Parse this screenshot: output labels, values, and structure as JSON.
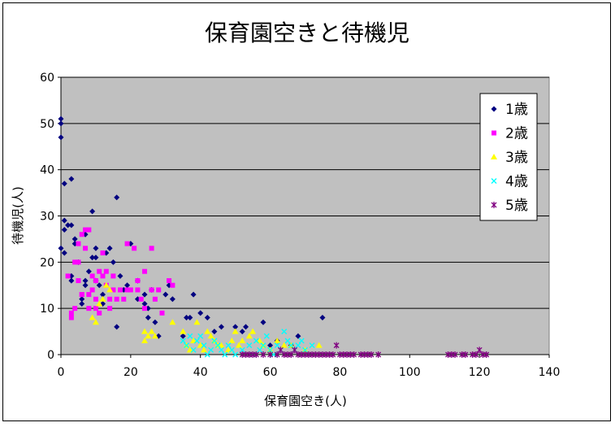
{
  "chart_data": {
    "type": "scatter",
    "title": "保育園空きと待機児",
    "xlabel": "保育園空き(人)",
    "ylabel": "待機児(人)",
    "xlim": [
      0,
      140
    ],
    "ylim": [
      0,
      60
    ],
    "xticks": [
      "0",
      "20",
      "40",
      "60",
      "80",
      "100",
      "120",
      "140"
    ],
    "yticks": [
      "0",
      "10",
      "20",
      "30",
      "40",
      "50",
      "60"
    ],
    "grid": "horizontal",
    "legend_position": "top-right",
    "series": [
      {
        "name": "1歳",
        "marker": "diamond",
        "color": "#000080",
        "points": [
          [
            0,
            51
          ],
          [
            0,
            50
          ],
          [
            0,
            47
          ],
          [
            0,
            23
          ],
          [
            1,
            37
          ],
          [
            1,
            29
          ],
          [
            1,
            27
          ],
          [
            1,
            22
          ],
          [
            2,
            28
          ],
          [
            3,
            28
          ],
          [
            3,
            38
          ],
          [
            3,
            17
          ],
          [
            3,
            16
          ],
          [
            4,
            25
          ],
          [
            4,
            24
          ],
          [
            5,
            20
          ],
          [
            6,
            12
          ],
          [
            6,
            11
          ],
          [
            7,
            16
          ],
          [
            7,
            15
          ],
          [
            7,
            26
          ],
          [
            8,
            18
          ],
          [
            9,
            31
          ],
          [
            9,
            21
          ],
          [
            10,
            23
          ],
          [
            10,
            21
          ],
          [
            10,
            16
          ],
          [
            11,
            15
          ],
          [
            12,
            13
          ],
          [
            12,
            11
          ],
          [
            13,
            22
          ],
          [
            14,
            23
          ],
          [
            15,
            20
          ],
          [
            16,
            34
          ],
          [
            16,
            6
          ],
          [
            17,
            17
          ],
          [
            18,
            14
          ],
          [
            19,
            15
          ],
          [
            20,
            24
          ],
          [
            22,
            16
          ],
          [
            22,
            12
          ],
          [
            24,
            13
          ],
          [
            24,
            11
          ],
          [
            25,
            10
          ],
          [
            25,
            8
          ],
          [
            26,
            14
          ],
          [
            27,
            7
          ],
          [
            28,
            4
          ],
          [
            30,
            13
          ],
          [
            31,
            15
          ],
          [
            32,
            12
          ],
          [
            35,
            4
          ],
          [
            36,
            8
          ],
          [
            37,
            8
          ],
          [
            38,
            13
          ],
          [
            40,
            9
          ],
          [
            42,
            8
          ],
          [
            44,
            5
          ],
          [
            46,
            6
          ],
          [
            50,
            6
          ],
          [
            52,
            5
          ],
          [
            53,
            6
          ],
          [
            58,
            7
          ],
          [
            60,
            2
          ],
          [
            62,
            3
          ],
          [
            66,
            2
          ],
          [
            68,
            4
          ],
          [
            75,
            8
          ]
        ]
      },
      {
        "name": "2歳",
        "marker": "square",
        "color": "#ff00ff",
        "points": [
          [
            2,
            17
          ],
          [
            3,
            9
          ],
          [
            3,
            8
          ],
          [
            4,
            10
          ],
          [
            4,
            20
          ],
          [
            5,
            24
          ],
          [
            5,
            20
          ],
          [
            5,
            16
          ],
          [
            6,
            26
          ],
          [
            6,
            13
          ],
          [
            6,
            13
          ],
          [
            7,
            27
          ],
          [
            7,
            23
          ],
          [
            8,
            27
          ],
          [
            8,
            13
          ],
          [
            8,
            10
          ],
          [
            9,
            17
          ],
          [
            9,
            14
          ],
          [
            10,
            16
          ],
          [
            10,
            12
          ],
          [
            10,
            10
          ],
          [
            11,
            18
          ],
          [
            11,
            9
          ],
          [
            12,
            22
          ],
          [
            12,
            17
          ],
          [
            13,
            18
          ],
          [
            13,
            15
          ],
          [
            14,
            12
          ],
          [
            14,
            10
          ],
          [
            15,
            14
          ],
          [
            15,
            17
          ],
          [
            16,
            12
          ],
          [
            17,
            14
          ],
          [
            18,
            12
          ],
          [
            19,
            24
          ],
          [
            19,
            14
          ],
          [
            20,
            14
          ],
          [
            21,
            23
          ],
          [
            22,
            16
          ],
          [
            22,
            14
          ],
          [
            23,
            12
          ],
          [
            24,
            10
          ],
          [
            24,
            18
          ],
          [
            26,
            23
          ],
          [
            26,
            14
          ],
          [
            27,
            12
          ],
          [
            28,
            14
          ],
          [
            29,
            9
          ],
          [
            31,
            16
          ],
          [
            32,
            15
          ]
        ]
      },
      {
        "name": "3歳",
        "marker": "triangle",
        "color": "#ffff00",
        "points": [
          [
            9,
            8
          ],
          [
            10,
            7
          ],
          [
            11,
            11
          ],
          [
            12,
            12
          ],
          [
            13,
            15
          ],
          [
            14,
            14
          ],
          [
            24,
            5
          ],
          [
            24,
            3
          ],
          [
            25,
            4
          ],
          [
            26,
            5
          ],
          [
            27,
            4
          ],
          [
            32,
            7
          ],
          [
            35,
            5
          ],
          [
            36,
            2
          ],
          [
            37,
            1
          ],
          [
            38,
            3
          ],
          [
            39,
            7
          ],
          [
            40,
            2
          ],
          [
            41,
            1
          ],
          [
            42,
            5
          ],
          [
            43,
            4
          ],
          [
            44,
            3
          ],
          [
            45,
            2
          ],
          [
            46,
            2
          ],
          [
            48,
            1
          ],
          [
            49,
            3
          ],
          [
            50,
            5
          ],
          [
            51,
            2
          ],
          [
            52,
            3
          ],
          [
            54,
            4
          ],
          [
            55,
            5
          ],
          [
            57,
            3
          ],
          [
            58,
            2
          ],
          [
            60,
            1
          ],
          [
            62,
            3
          ],
          [
            64,
            2
          ],
          [
            66,
            2
          ],
          [
            70,
            1
          ],
          [
            74,
            2
          ]
        ]
      },
      {
        "name": "4歳",
        "marker": "x",
        "color": "#00ffff",
        "points": [
          [
            35,
            3
          ],
          [
            36,
            2
          ],
          [
            37,
            4
          ],
          [
            38,
            1
          ],
          [
            39,
            3
          ],
          [
            40,
            4
          ],
          [
            41,
            2
          ],
          [
            42,
            0
          ],
          [
            43,
            1
          ],
          [
            44,
            3
          ],
          [
            45,
            2
          ],
          [
            46,
            1
          ],
          [
            47,
            0
          ],
          [
            48,
            2
          ],
          [
            49,
            1
          ],
          [
            50,
            0
          ],
          [
            52,
            1
          ],
          [
            54,
            2
          ],
          [
            55,
            0
          ],
          [
            56,
            3
          ],
          [
            57,
            1
          ],
          [
            58,
            2
          ],
          [
            59,
            4
          ],
          [
            60,
            1
          ],
          [
            61,
            0
          ],
          [
            62,
            2
          ],
          [
            63,
            1
          ],
          [
            64,
            5
          ],
          [
            65,
            3
          ],
          [
            66,
            2
          ],
          [
            67,
            1
          ],
          [
            68,
            2
          ],
          [
            69,
            3
          ],
          [
            70,
            1
          ],
          [
            72,
            2
          ]
        ]
      },
      {
        "name": "5歳",
        "marker": "asterisk",
        "color": "#800080",
        "points": [
          [
            52,
            0
          ],
          [
            53,
            0
          ],
          [
            54,
            0
          ],
          [
            55,
            0
          ],
          [
            56,
            0
          ],
          [
            58,
            0
          ],
          [
            60,
            0
          ],
          [
            62,
            0
          ],
          [
            63,
            1
          ],
          [
            64,
            0
          ],
          [
            65,
            0
          ],
          [
            66,
            0
          ],
          [
            67,
            1
          ],
          [
            68,
            0
          ],
          [
            69,
            0
          ],
          [
            70,
            0
          ],
          [
            71,
            0
          ],
          [
            72,
            0
          ],
          [
            73,
            0
          ],
          [
            74,
            0
          ],
          [
            75,
            0
          ],
          [
            76,
            0
          ],
          [
            77,
            0
          ],
          [
            78,
            0
          ],
          [
            79,
            2
          ],
          [
            80,
            0
          ],
          [
            81,
            0
          ],
          [
            82,
            0
          ],
          [
            83,
            0
          ],
          [
            84,
            0
          ],
          [
            86,
            0
          ],
          [
            87,
            0
          ],
          [
            88,
            0
          ],
          [
            89,
            0
          ],
          [
            91,
            0
          ],
          [
            111,
            0
          ],
          [
            112,
            0
          ],
          [
            113,
            0
          ],
          [
            115,
            0
          ],
          [
            116,
            0
          ],
          [
            118,
            0
          ],
          [
            119,
            0
          ],
          [
            120,
            1
          ],
          [
            121,
            0
          ],
          [
            122,
            0
          ]
        ]
      }
    ]
  }
}
